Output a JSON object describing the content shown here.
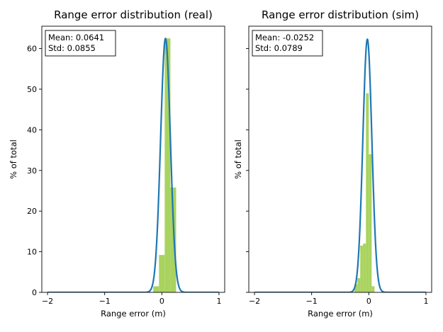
{
  "chart_data": [
    {
      "type": "bar",
      "title": "Range error distribution (real)",
      "xlabel": "Range error (m)",
      "ylabel": "% of total",
      "xlim": [
        -2.1,
        1.1
      ],
      "ylim": [
        0,
        65.5
      ],
      "xticks": [
        -2,
        -1,
        0,
        1
      ],
      "yticks": [
        0,
        10,
        20,
        30,
        40,
        50,
        60
      ],
      "ytick_labels_visible": true,
      "grid": false,
      "stats_box": {
        "mean": "Mean: 0.0641",
        "std": "Std: 0.0855",
        "position": "top-left"
      },
      "histogram": {
        "bin_width": 0.1,
        "bin_starts": [
          -0.15,
          -0.05,
          0.05,
          0.15
        ],
        "values": [
          1.5,
          9.2,
          62.5,
          25.8
        ],
        "color": "#a9d35f"
      },
      "fit_curve": {
        "mean": 0.0641,
        "std": 0.0855,
        "peak": 62.5,
        "color": "#1f77b4"
      }
    },
    {
      "type": "bar",
      "title": "Range error distribution (sim)",
      "xlabel": "Range error (m)",
      "ylabel": "% of total",
      "xlim": [
        -2.1,
        1.1
      ],
      "ylim": [
        0,
        65.5
      ],
      "xticks": [
        -2,
        -1,
        0,
        1
      ],
      "yticks": [
        0,
        10,
        20,
        30,
        40,
        50,
        60
      ],
      "ytick_labels_visible": false,
      "grid": false,
      "stats_box": {
        "mean": "Mean: -0.0252",
        "std": "Std: 0.0789",
        "position": "top-left"
      },
      "histogram": {
        "bin_width": 0.05,
        "bin_starts": [
          -0.25,
          -0.2,
          -0.15,
          -0.1,
          -0.05,
          0.0,
          0.05
        ],
        "values": [
          2.0,
          3.5,
          11.5,
          12.0,
          49.0,
          34.0,
          1.5
        ],
        "color": "#a9d35f"
      },
      "fit_curve": {
        "mean": -0.0252,
        "std": 0.0789,
        "peak": 62.3,
        "color": "#1f77b4"
      }
    }
  ]
}
